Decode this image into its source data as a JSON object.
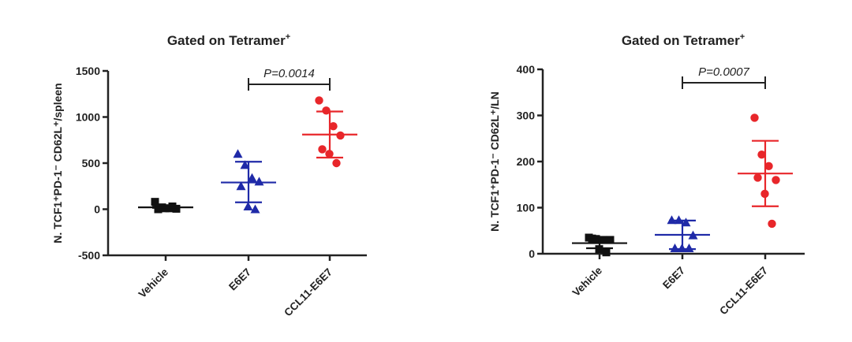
{
  "chart_data": [
    {
      "type": "scatter",
      "title": "Gated on Tetramer",
      "title_sup": "+",
      "ylabel": "N. TCF1⁺PD-1⁻ CD62L⁺/spleen",
      "ylim": [
        -500,
        1500
      ],
      "yticks": [
        -500,
        0,
        500,
        1000,
        1500
      ],
      "categories": [
        "Vehicle",
        "E6E7",
        "CCL11-E6E7"
      ],
      "annotation": {
        "text": "P=0.0014",
        "between": [
          "E6E7",
          "CCL11-E6E7"
        ]
      },
      "series": [
        {
          "name": "Vehicle",
          "color": "#111111",
          "marker": "square",
          "values": [
            80,
            20,
            10,
            5,
            0,
            10,
            30
          ],
          "mean": 20,
          "sd_low": 15,
          "sd_high": 28
        },
        {
          "name": "E6E7",
          "color": "#1f2aa8",
          "marker": "triangle",
          "values": [
            600,
            480,
            340,
            300,
            250,
            30,
            0
          ],
          "mean": 290,
          "sd_low": 75,
          "sd_high": 515
        },
        {
          "name": "CCL11-E6E7",
          "color": "#e8262a",
          "marker": "circle",
          "values": [
            1180,
            1070,
            900,
            800,
            650,
            600,
            500
          ],
          "mean": 810,
          "sd_low": 560,
          "sd_high": 1060
        }
      ]
    },
    {
      "type": "scatter",
      "title": "Gated on Tetramer",
      "title_sup": "+",
      "ylabel": "N. TCF1⁺PD-1⁻ CD62L⁺/LN",
      "ylim": [
        0,
        400
      ],
      "yticks": [
        0,
        100,
        200,
        300,
        400
      ],
      "categories": [
        "Vehicle",
        "E6E7",
        "CCL11-E6E7"
      ],
      "annotation": {
        "text": "P=0.0007",
        "between": [
          "E6E7",
          "CCL11-E6E7"
        ]
      },
      "series": [
        {
          "name": "Vehicle",
          "color": "#111111",
          "marker": "square",
          "values": [
            35,
            32,
            30,
            30,
            33,
            10,
            3
          ],
          "mean": 23,
          "sd_low": 12,
          "sd_high": 35
        },
        {
          "name": "E6E7",
          "color": "#1f2aa8",
          "marker": "triangle",
          "values": [
            73,
            73,
            68,
            40,
            12,
            12,
            12
          ],
          "mean": 41,
          "sd_low": 10,
          "sd_high": 72
        },
        {
          "name": "CCL11-E6E7",
          "color": "#e8262a",
          "marker": "circle",
          "values": [
            295,
            215,
            190,
            160,
            165,
            130,
            65
          ],
          "mean": 174,
          "sd_low": 103,
          "sd_high": 245
        }
      ]
    }
  ]
}
